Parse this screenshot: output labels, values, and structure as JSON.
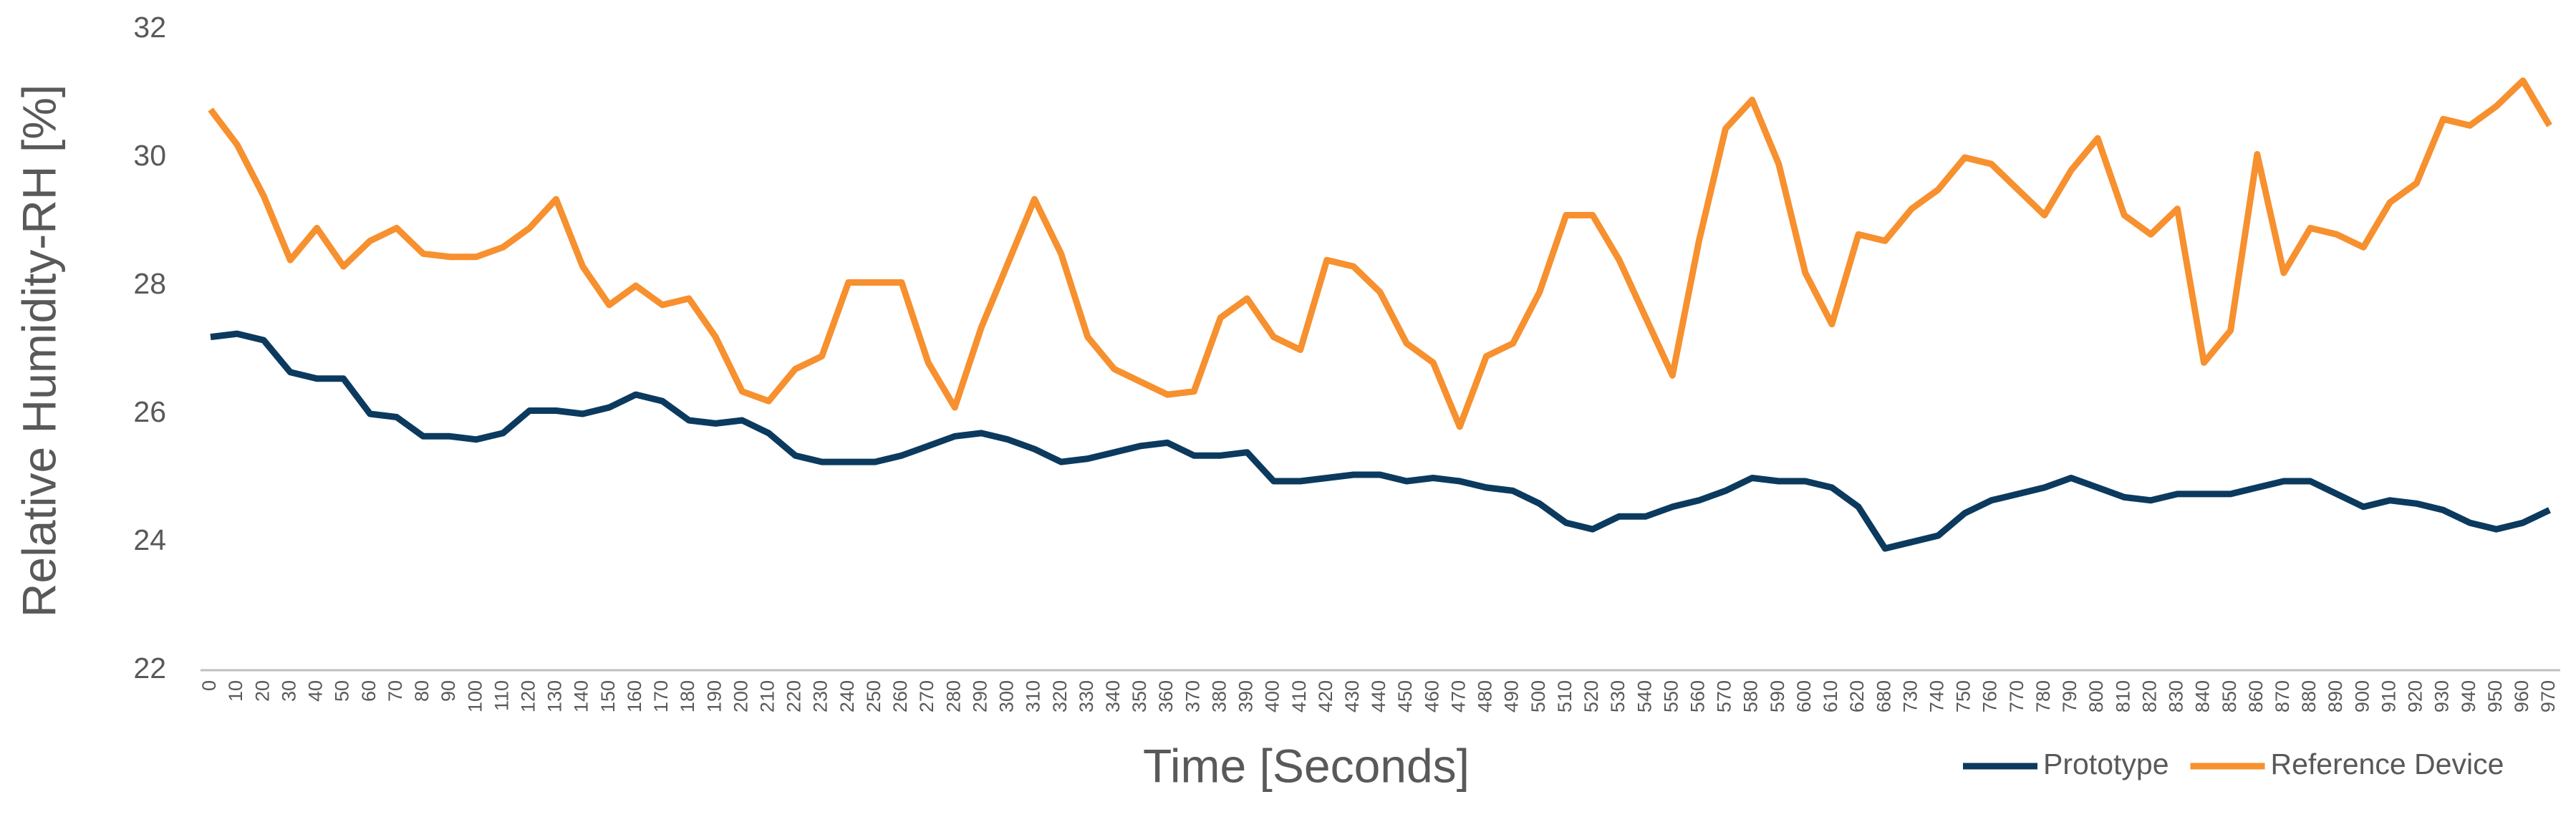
{
  "chart_data": {
    "type": "line",
    "ylabel": "Relative Humidity-RH [%]",
    "xlabel": "Time [Seconds]",
    "categories": [
      "0",
      "10",
      "20",
      "30",
      "40",
      "50",
      "60",
      "70",
      "80",
      "90",
      "100",
      "110",
      "120",
      "130",
      "140",
      "150",
      "160",
      "170",
      "180",
      "190",
      "200",
      "210",
      "220",
      "230",
      "240",
      "250",
      "260",
      "270",
      "280",
      "290",
      "300",
      "310",
      "320",
      "330",
      "340",
      "350",
      "360",
      "370",
      "380",
      "390",
      "400",
      "410",
      "420",
      "430",
      "440",
      "450",
      "460",
      "470",
      "480",
      "490",
      "500",
      "510",
      "520",
      "530",
      "540",
      "550",
      "560",
      "570",
      "580",
      "590",
      "600",
      "610",
      "620",
      "680",
      "730",
      "740",
      "750",
      "760",
      "770",
      "780",
      "790",
      "800",
      "810",
      "820",
      "830",
      "840",
      "850",
      "860",
      "870",
      "880",
      "890",
      "900",
      "910",
      "920",
      "930",
      "940",
      "950",
      "960",
      "970"
    ],
    "series": [
      {
        "name": "Prototype",
        "color": "#0b3a5e",
        "values": [
          27.2,
          27.25,
          27.15,
          26.65,
          26.55,
          26.55,
          26.0,
          25.95,
          25.65,
          25.65,
          25.6,
          25.7,
          26.05,
          26.05,
          26.0,
          26.1,
          26.3,
          26.2,
          25.9,
          25.85,
          25.9,
          25.7,
          25.35,
          25.25,
          25.25,
          25.25,
          25.35,
          25.5,
          25.65,
          25.7,
          25.6,
          25.45,
          25.25,
          25.3,
          25.4,
          25.5,
          25.55,
          25.35,
          25.35,
          25.4,
          24.95,
          24.95,
          25.0,
          25.05,
          25.05,
          24.95,
          25.0,
          24.95,
          24.85,
          24.8,
          24.6,
          24.3,
          24.2,
          24.4,
          24.4,
          24.55,
          24.65,
          24.8,
          25.0,
          24.95,
          24.95,
          24.85,
          24.55,
          23.9,
          24.0,
          24.1,
          24.45,
          24.65,
          24.75,
          24.85,
          25.0,
          24.85,
          24.7,
          24.65,
          24.75,
          24.75,
          24.75,
          24.85,
          24.95,
          24.95,
          24.75,
          24.55,
          24.65,
          24.6,
          24.5,
          24.3,
          24.2,
          24.3,
          24.5
        ]
      },
      {
        "name": "Reference Device",
        "color": "#f7902e",
        "values": [
          30.75,
          30.2,
          29.4,
          28.4,
          28.9,
          28.3,
          28.7,
          28.9,
          28.5,
          28.45,
          28.45,
          28.6,
          28.9,
          29.35,
          28.3,
          27.7,
          28.0,
          27.7,
          27.8,
          27.2,
          26.35,
          26.2,
          26.7,
          26.9,
          28.05,
          28.05,
          28.05,
          26.8,
          26.1,
          27.35,
          28.35,
          29.35,
          28.5,
          27.2,
          26.7,
          26.5,
          26.3,
          26.35,
          27.5,
          27.8,
          27.2,
          27.0,
          28.4,
          28.3,
          27.9,
          27.1,
          26.8,
          25.8,
          26.9,
          27.1,
          27.9,
          29.1,
          29.1,
          28.4,
          27.5,
          26.6,
          28.7,
          30.45,
          30.9,
          29.9,
          28.2,
          27.4,
          28.8,
          28.7,
          29.2,
          29.5,
          30.0,
          29.9,
          29.5,
          29.1,
          29.8,
          30.3,
          29.1,
          28.8,
          29.2,
          26.8,
          27.3,
          30.05,
          28.2,
          28.9,
          28.8,
          28.6,
          29.3,
          29.6,
          30.6,
          30.5,
          30.8,
          31.2,
          30.5
        ]
      }
    ],
    "ylim": [
      22,
      32
    ],
    "yticks": [
      22,
      24,
      26,
      28,
      30,
      32
    ],
    "grid": false,
    "legend": "bottom-right"
  }
}
